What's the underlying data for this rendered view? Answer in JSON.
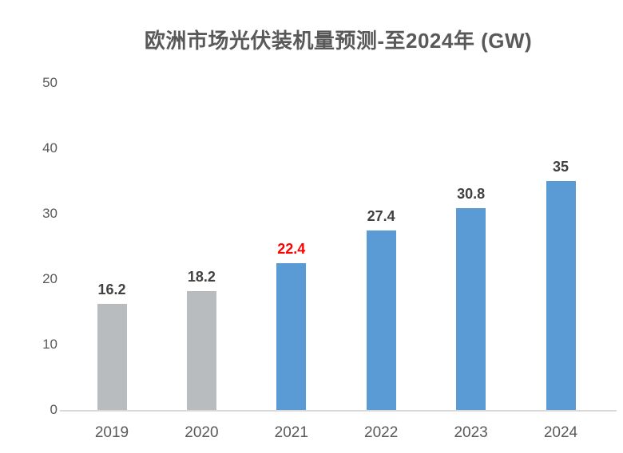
{
  "chart_data": {
    "type": "bar",
    "title": "欧洲市场光伏装机量预测-至2024年 (GW)",
    "categories": [
      "2019",
      "2020",
      "2021",
      "2022",
      "2023",
      "2024"
    ],
    "values": [
      16.2,
      18.2,
      22.4,
      27.4,
      30.8,
      35
    ],
    "value_labels": [
      "16.2",
      "18.2",
      "22.4",
      "27.4",
      "30.8",
      "35"
    ],
    "xlabel": "",
    "ylabel": "",
    "ylim": [
      0,
      50
    ],
    "yticks": [
      0,
      10,
      20,
      30,
      40,
      50
    ],
    "grid": false,
    "legend": false,
    "styles": {
      "bar_colors": [
        "#B9BCBF",
        "#B9BCBF",
        "#5B9BD5",
        "#5B9BD5",
        "#5B9BD5",
        "#5B9BD5"
      ],
      "value_label_colors": [
        "#404040",
        "#404040",
        "#FF0000",
        "#404040",
        "#404040",
        "#404040"
      ],
      "title_color": "#595959",
      "axis_tick_color": "#595959",
      "axis_line_color": "#D9D9D9",
      "background_color": "#FFFFFF"
    }
  }
}
